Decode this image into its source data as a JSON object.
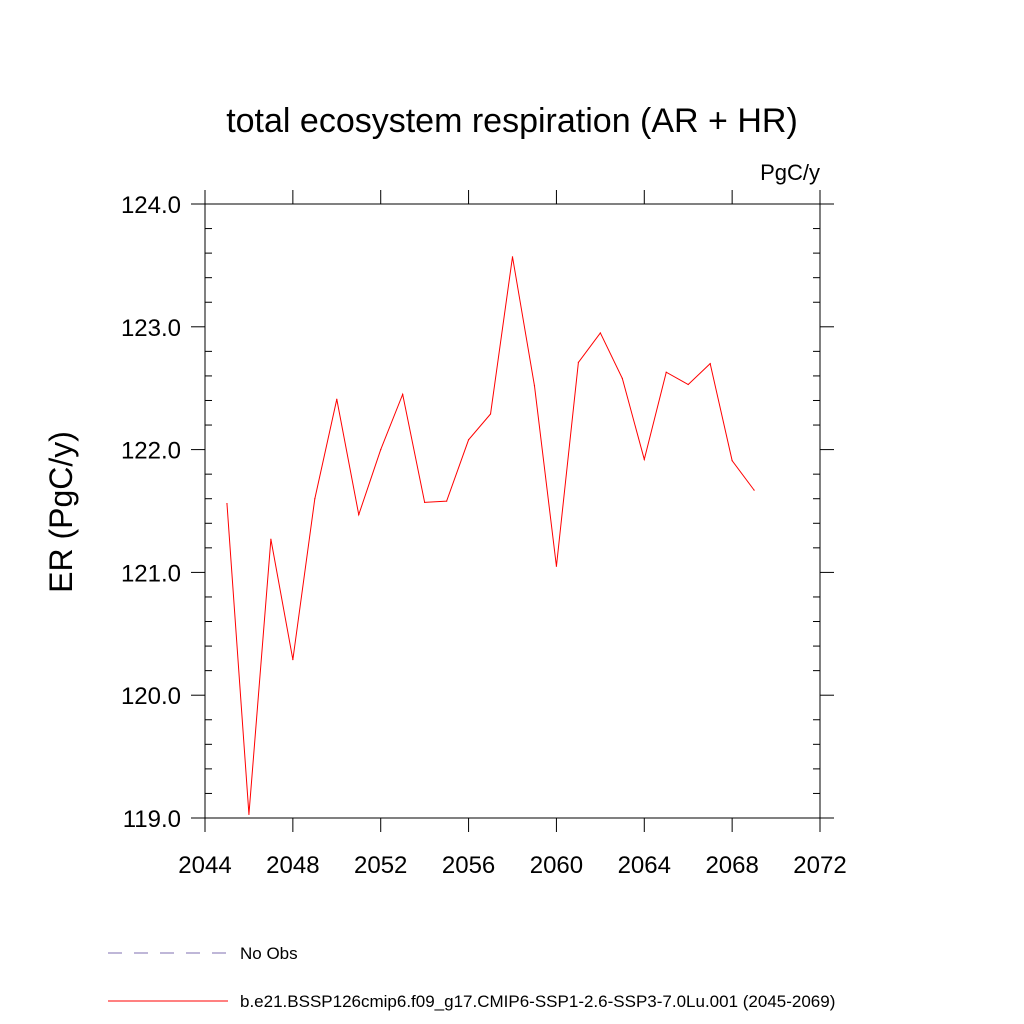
{
  "chart_data": {
    "type": "line",
    "title": "total ecosystem respiration (AR + HR)",
    "units": "PgC/y",
    "ylabel": "ER  (PgC/y)",
    "xlim": [
      2044,
      2072
    ],
    "ylim": [
      119.0,
      124.0
    ],
    "x_ticks": [
      2044,
      2048,
      2052,
      2056,
      2060,
      2064,
      2068,
      2072
    ],
    "y_ticks": [
      119.0,
      120.0,
      121.0,
      122.0,
      123.0,
      124.0
    ],
    "grid": false,
    "legend_position": "bottom-left",
    "x": [
      2045,
      2046,
      2047,
      2048,
      2049,
      2050,
      2051,
      2052,
      2053,
      2054,
      2055,
      2056,
      2057,
      2058,
      2059,
      2060,
      2061,
      2062,
      2063,
      2064,
      2065,
      2066,
      2067,
      2068,
      2069
    ],
    "series": [
      {
        "name": "b.e21.BSSP126cmip6.f09_g17.CMIP6-SSP1-2.6-SSP3-7.0Lu.001 (2045-2069)",
        "color": "#ff0000",
        "values": [
          121.56,
          119.03,
          121.27,
          120.29,
          121.6,
          122.41,
          121.47,
          122.0,
          122.45,
          121.57,
          121.58,
          122.08,
          122.29,
          123.57,
          122.52,
          121.05,
          122.71,
          122.95,
          122.58,
          121.92,
          122.63,
          122.53,
          122.7,
          121.91,
          121.67
        ]
      }
    ],
    "legend": [
      {
        "label": "No Obs",
        "color": "#7f6fb0",
        "style": "dashed"
      },
      {
        "label": "b.e21.BSSP126cmip6.f09_g17.CMIP6-SSP1-2.6-SSP3-7.0Lu.001 (2045-2069)",
        "color": "#ff0000",
        "style": "solid"
      }
    ]
  }
}
